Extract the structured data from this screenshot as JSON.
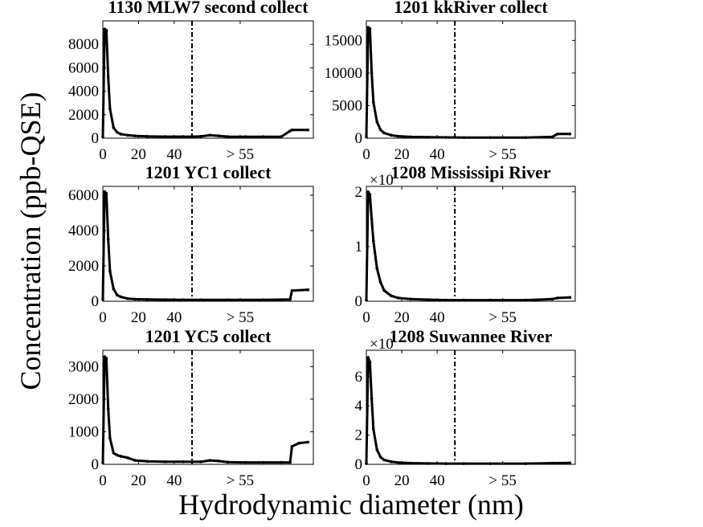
{
  "figure": {
    "ylabel": "Concentration (ppb-QSE)",
    "xlabel": "Hydrodynamic diameter (nm)"
  },
  "chart_data": [
    {
      "type": "line",
      "title": "1130 MLW7 second collect",
      "x_tick_labels": [
        "0",
        "20",
        "40",
        "> 55"
      ],
      "y_ticks": [
        0,
        2000,
        4000,
        6000,
        8000
      ],
      "y_multiplier": "",
      "ylim": [
        0,
        10000
      ],
      "cutoff_x": 50,
      "x": [
        0,
        1,
        2,
        3,
        4,
        6,
        8,
        10,
        14,
        18,
        25,
        35,
        45,
        50,
        55,
        60,
        65,
        70,
        80,
        90,
        100,
        105,
        106,
        115
      ],
      "y": [
        100,
        9300,
        9200,
        5200,
        2500,
        900,
        500,
        350,
        250,
        200,
        150,
        130,
        130,
        130,
        160,
        250,
        200,
        130,
        120,
        120,
        120,
        620,
        700,
        700
      ]
    },
    {
      "type": "line",
      "title": "1201 kkRiver collect",
      "x_tick_labels": [
        "0",
        "20",
        "40",
        "> 55"
      ],
      "y_ticks": [
        0,
        5000,
        10000,
        15000
      ],
      "y_multiplier": "",
      "ylim": [
        0,
        18000
      ],
      "cutoff_x": 50,
      "x": [
        0,
        1,
        2,
        3,
        4,
        6,
        8,
        10,
        14,
        18,
        25,
        35,
        45,
        55,
        70,
        90,
        105,
        108,
        115
      ],
      "y": [
        200,
        17000,
        16800,
        10000,
        5500,
        2500,
        1300,
        800,
        450,
        300,
        200,
        150,
        120,
        100,
        100,
        100,
        200,
        650,
        650
      ]
    },
    {
      "type": "line",
      "title": "1201 YC1 collect",
      "x_tick_labels": [
        "0",
        "20",
        "40",
        "> 55"
      ],
      "y_ticks": [
        0,
        2000,
        4000,
        6000
      ],
      "y_multiplier": "",
      "ylim": [
        0,
        6500
      ],
      "cutoff_x": 50,
      "x": [
        0,
        1,
        2,
        3,
        4,
        6,
        8,
        10,
        14,
        18,
        25,
        35,
        45,
        55,
        70,
        90,
        105,
        106,
        115
      ],
      "y": [
        100,
        6200,
        6100,
        3500,
        1700,
        700,
        350,
        250,
        150,
        120,
        100,
        90,
        80,
        80,
        80,
        80,
        100,
        600,
        650
      ]
    },
    {
      "type": "line",
      "title": "1208 Mississipi River",
      "x_tick_labels": [
        "0",
        "20",
        "40",
        "> 55"
      ],
      "y_ticks": [
        0,
        1,
        2
      ],
      "y_multiplier": "×10",
      "ylim": [
        0,
        2.1
      ],
      "cutoff_x": 50,
      "x": [
        0,
        1,
        2,
        3,
        4,
        6,
        8,
        10,
        14,
        18,
        25,
        35,
        45,
        55,
        70,
        90,
        105,
        108,
        115
      ],
      "y": [
        0.02,
        2.0,
        1.95,
        1.5,
        1.1,
        0.6,
        0.35,
        0.2,
        0.1,
        0.06,
        0.04,
        0.03,
        0.02,
        0.02,
        0.02,
        0.02,
        0.04,
        0.06,
        0.07
      ]
    },
    {
      "type": "line",
      "title": "1201 YC5 collect",
      "x_tick_labels": [
        "0",
        "20",
        "40",
        "> 55"
      ],
      "y_ticks": [
        0,
        1000,
        2000,
        3000
      ],
      "y_multiplier": "",
      "ylim": [
        0,
        3500
      ],
      "cutoff_x": 50,
      "x": [
        0,
        1,
        2,
        3,
        4,
        6,
        8,
        10,
        14,
        18,
        25,
        35,
        45,
        55,
        60,
        65,
        70,
        80,
        90,
        100,
        105,
        106,
        110,
        115
      ],
      "y": [
        50,
        3300,
        3250,
        1700,
        800,
        350,
        280,
        250,
        200,
        120,
        90,
        80,
        80,
        80,
        120,
        100,
        70,
        60,
        60,
        60,
        60,
        550,
        650,
        680
      ]
    },
    {
      "type": "line",
      "title": "1208 Suwannee River",
      "x_tick_labels": [
        "0",
        "20",
        "40",
        "> 55"
      ],
      "y_ticks": [
        0,
        2,
        4,
        6
      ],
      "y_multiplier": "×10",
      "ylim": [
        0,
        7.8
      ],
      "cutoff_x": 50,
      "x": [
        0,
        1,
        2,
        3,
        4,
        6,
        8,
        10,
        14,
        18,
        25,
        35,
        45,
        55,
        70,
        90,
        105,
        115
      ],
      "y": [
        0.05,
        7.3,
        7.0,
        4.5,
        2.4,
        1.0,
        0.5,
        0.3,
        0.18,
        0.12,
        0.08,
        0.06,
        0.05,
        0.05,
        0.05,
        0.05,
        0.08,
        0.1
      ]
    }
  ]
}
